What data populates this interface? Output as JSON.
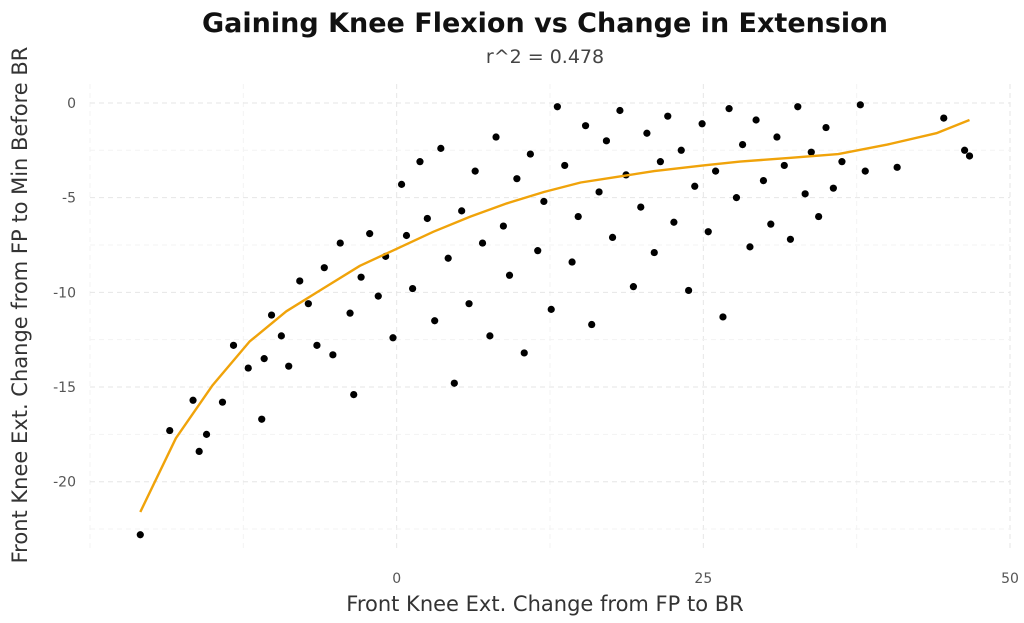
{
  "chart_data": {
    "type": "scatter",
    "title": "Gaining Knee Flexion vs Change in Extension",
    "subtitle": "r^2 = 0.478",
    "xlabel": "Front Knee Ext. Change from FP to BR",
    "ylabel": "Front Knee Ext. Change from FP to Min Before BR",
    "xlim": [
      -25,
      50
    ],
    "ylim": [
      -23.5,
      1
    ],
    "xticks": [
      0,
      25,
      50
    ],
    "yticks": [
      0,
      -5,
      -10,
      -15,
      -20
    ],
    "grid": true,
    "point_color": "#000000",
    "trend_color": "#f0a30a",
    "points": [
      [
        -20.9,
        -22.8
      ],
      [
        -18.5,
        -17.3
      ],
      [
        -16.6,
        -15.7
      ],
      [
        -16.1,
        -18.4
      ],
      [
        -15.5,
        -17.5
      ],
      [
        -14.2,
        -15.8
      ],
      [
        -13.3,
        -12.8
      ],
      [
        -12.1,
        -14.0
      ],
      [
        -11.0,
        -16.7
      ],
      [
        -10.8,
        -13.5
      ],
      [
        -10.2,
        -11.2
      ],
      [
        -9.4,
        -12.3
      ],
      [
        -8.8,
        -13.9
      ],
      [
        -7.9,
        -9.4
      ],
      [
        -7.2,
        -10.6
      ],
      [
        -6.5,
        -12.8
      ],
      [
        -5.9,
        -8.7
      ],
      [
        -5.2,
        -13.3
      ],
      [
        -4.6,
        -7.4
      ],
      [
        -3.8,
        -11.1
      ],
      [
        -3.5,
        -15.4
      ],
      [
        -2.9,
        -9.2
      ],
      [
        -2.2,
        -6.9
      ],
      [
        -1.5,
        -10.2
      ],
      [
        -0.9,
        -8.1
      ],
      [
        -0.3,
        -12.4
      ],
      [
        0.4,
        -4.3
      ],
      [
        0.8,
        -7.0
      ],
      [
        1.3,
        -9.8
      ],
      [
        1.9,
        -3.1
      ],
      [
        2.5,
        -6.1
      ],
      [
        3.1,
        -11.5
      ],
      [
        3.6,
        -2.4
      ],
      [
        4.2,
        -8.2
      ],
      [
        4.7,
        -14.8
      ],
      [
        5.3,
        -5.7
      ],
      [
        5.9,
        -10.6
      ],
      [
        6.4,
        -3.6
      ],
      [
        7.0,
        -7.4
      ],
      [
        7.6,
        -12.3
      ],
      [
        8.1,
        -1.8
      ],
      [
        8.7,
        -6.5
      ],
      [
        9.2,
        -9.1
      ],
      [
        9.8,
        -4.0
      ],
      [
        10.4,
        -13.2
      ],
      [
        10.9,
        -2.7
      ],
      [
        11.5,
        -7.8
      ],
      [
        12.0,
        -5.2
      ],
      [
        12.6,
        -10.9
      ],
      [
        13.1,
        -0.2
      ],
      [
        13.7,
        -3.3
      ],
      [
        14.3,
        -8.4
      ],
      [
        14.8,
        -6.0
      ],
      [
        15.4,
        -1.2
      ],
      [
        15.9,
        -11.7
      ],
      [
        16.5,
        -4.7
      ],
      [
        17.1,
        -2.0
      ],
      [
        17.6,
        -7.1
      ],
      [
        18.2,
        -0.4
      ],
      [
        18.7,
        -3.8
      ],
      [
        19.3,
        -9.7
      ],
      [
        19.9,
        -5.5
      ],
      [
        20.4,
        -1.6
      ],
      [
        21.0,
        -7.9
      ],
      [
        21.5,
        -3.1
      ],
      [
        22.1,
        -0.7
      ],
      [
        22.6,
        -6.3
      ],
      [
        23.2,
        -2.5
      ],
      [
        23.8,
        -9.9
      ],
      [
        24.3,
        -4.4
      ],
      [
        24.9,
        -1.1
      ],
      [
        25.4,
        -6.8
      ],
      [
        26.0,
        -3.6
      ],
      [
        26.6,
        -11.3
      ],
      [
        27.1,
        -0.3
      ],
      [
        27.7,
        -5.0
      ],
      [
        28.2,
        -2.2
      ],
      [
        28.8,
        -7.6
      ],
      [
        29.3,
        -0.9
      ],
      [
        29.9,
        -4.1
      ],
      [
        30.5,
        -6.4
      ],
      [
        31.0,
        -1.8
      ],
      [
        31.6,
        -3.3
      ],
      [
        32.1,
        -7.2
      ],
      [
        32.7,
        -0.2
      ],
      [
        33.3,
        -4.8
      ],
      [
        33.8,
        -2.6
      ],
      [
        34.4,
        -6.0
      ],
      [
        35.0,
        -1.3
      ],
      [
        35.6,
        -4.5
      ],
      [
        36.3,
        -3.1
      ],
      [
        37.8,
        -0.1
      ],
      [
        38.2,
        -3.6
      ],
      [
        40.8,
        -3.4
      ],
      [
        44.6,
        -0.8
      ],
      [
        46.3,
        -2.5
      ],
      [
        46.7,
        -2.8
      ]
    ],
    "trend": [
      [
        -20.9,
        -21.6
      ],
      [
        -18,
        -17.7
      ],
      [
        -15,
        -14.9
      ],
      [
        -12,
        -12.6
      ],
      [
        -9,
        -11.0
      ],
      [
        -6,
        -9.8
      ],
      [
        -3,
        -8.6
      ],
      [
        0,
        -7.7
      ],
      [
        3,
        -6.8
      ],
      [
        6,
        -6.0
      ],
      [
        9,
        -5.3
      ],
      [
        12,
        -4.7
      ],
      [
        15,
        -4.2
      ],
      [
        18,
        -3.9
      ],
      [
        21,
        -3.6
      ],
      [
        25,
        -3.3
      ],
      [
        28,
        -3.1
      ],
      [
        32,
        -2.9
      ],
      [
        36,
        -2.7
      ],
      [
        40,
        -2.2
      ],
      [
        44,
        -1.6
      ],
      [
        46.7,
        -0.9
      ]
    ]
  }
}
